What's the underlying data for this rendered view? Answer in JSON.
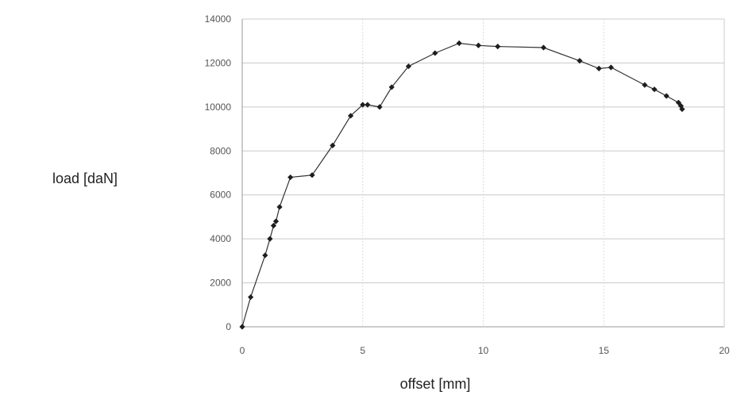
{
  "chart_data": {
    "type": "line",
    "title": "",
    "xlabel": "offset [mm]",
    "ylabel": "load [daN]",
    "xlim": [
      0,
      20
    ],
    "ylim": [
      0,
      14000
    ],
    "x_ticks": [
      0,
      5,
      10,
      15,
      20
    ],
    "y_ticks": [
      0,
      2000,
      4000,
      6000,
      8000,
      10000,
      12000,
      14000
    ],
    "x_tick_labels": [
      "0",
      "5",
      "10",
      "15",
      "20"
    ],
    "y_tick_labels": [
      "0",
      "2000",
      "4000",
      "6000",
      "8000",
      "10000",
      "12000",
      "14000"
    ],
    "grid": true,
    "legend": "none",
    "line_color": "#333333",
    "marker": "diamond",
    "series": [
      {
        "x": [
          0,
          0.35,
          0.95,
          1.15,
          1.3,
          1.4,
          1.55,
          2.0,
          2.9,
          3.75,
          4.5,
          5.0,
          5.2,
          5.7,
          6.2,
          6.9,
          8.0,
          9.0,
          9.8,
          10.6,
          12.5,
          14.0,
          14.8,
          15.3,
          16.7,
          17.1,
          17.6,
          18.1,
          18.2,
          18.25
        ],
        "y": [
          0,
          1350,
          3250,
          4000,
          4600,
          4800,
          5450,
          6800,
          6900,
          8250,
          9600,
          10100,
          10100,
          10000,
          10900,
          11850,
          12450,
          12900,
          12800,
          12750,
          12700,
          12100,
          11750,
          11800,
          11000,
          10800,
          10500,
          10200,
          10050,
          9900
        ]
      }
    ]
  }
}
